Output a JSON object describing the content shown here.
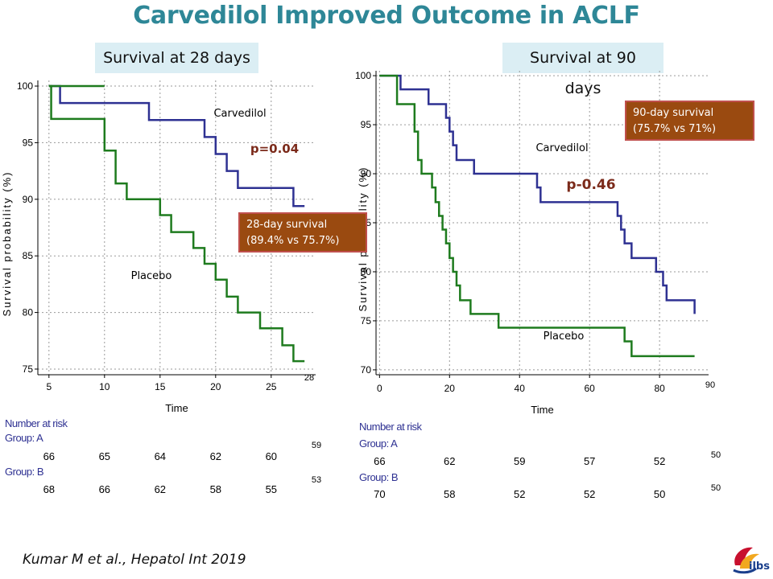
{
  "slide": {
    "title": "Carvedilol Improved Outcome in ACLF",
    "citation": "Kumar M et al., Hepatol Int 2019",
    "logo_text": "ilbs"
  },
  "colors": {
    "carvedilol": "#2e3192",
    "placebo": "#1e7b1e",
    "title": "#2e8797",
    "note_bg": "#9a4a10"
  },
  "chart_data": [
    {
      "type": "line",
      "panel_title": "Survival at 28 days",
      "xlabel": "Time",
      "ylabel": "Survival probability (%)",
      "xlim": [
        4,
        29
      ],
      "ylim": [
        74.5,
        100.5
      ],
      "x_ticks": [
        5,
        10,
        15,
        20,
        25
      ],
      "x_tick_labels": [
        "5",
        "10",
        "15",
        "20",
        "25"
      ],
      "extra_x_label": "28",
      "y_ticks": [
        75,
        80,
        85,
        90,
        95,
        100
      ],
      "grid": true,
      "series": [
        {
          "name": "Carvedilol",
          "color": "#2e3192",
          "steps": [
            [
              5,
              100
            ],
            [
              6,
              98.5
            ],
            [
              14,
              97
            ],
            [
              19,
              95.5
            ],
            [
              20,
              94
            ],
            [
              21,
              92.5
            ],
            [
              22,
              91
            ],
            [
              27,
              89.4
            ],
            [
              28,
              89.4
            ]
          ]
        },
        {
          "name": "Placebo",
          "color": "#1e7b1e",
          "steps": [
            [
              5,
              100
            ],
            [
              5.2,
              97.1
            ],
            [
              10,
              94.3
            ],
            [
              11,
              91.4
            ],
            [
              12,
              90
            ],
            [
              15,
              88.6
            ],
            [
              16,
              87.1
            ],
            [
              18,
              85.7
            ],
            [
              19,
              84.3
            ],
            [
              20,
              82.9
            ],
            [
              21,
              81.4
            ],
            [
              22,
              80
            ],
            [
              24,
              78.6
            ],
            [
              26,
              77.1
            ],
            [
              27,
              75.7
            ],
            [
              28,
              75.7
            ]
          ]
        },
        {
          "name": "",
          "color": "#1e7b1e",
          "steps": [
            [
              5,
              100
            ],
            [
              10,
              100
            ]
          ]
        }
      ],
      "annotations": {
        "p_value": "p=0.04",
        "note": "28-day survival (89.4% vs 75.7%)",
        "note_line1": "28-day survival",
        "note_line2": "(89.4% vs 75.7%)"
      },
      "risk_table": {
        "heading": "Number at risk",
        "groups": [
          {
            "label": "Group: A",
            "values": [
              "66",
              "65",
              "64",
              "62",
              "60"
            ],
            "final": "59"
          },
          {
            "label": "Group: B",
            "values": [
              "68",
              "66",
              "62",
              "58",
              "55"
            ],
            "final": "53"
          }
        ]
      }
    },
    {
      "type": "line",
      "panel_title": "Survival at 90 days",
      "xlabel": "Time",
      "ylabel": "Survival probability (%)",
      "xlim": [
        -1,
        94
      ],
      "ylim": [
        69.5,
        100.5
      ],
      "x_ticks": [
        0,
        20,
        40,
        60,
        80
      ],
      "x_tick_labels": [
        "0",
        "20",
        "40",
        "60",
        "80"
      ],
      "extra_x_label": "90",
      "y_ticks": [
        70,
        75,
        80,
        85,
        90,
        95,
        100
      ],
      "grid": true,
      "series": [
        {
          "name": "Carvedilol",
          "color": "#2e3192",
          "steps": [
            [
              0,
              100
            ],
            [
              6,
              98.6
            ],
            [
              14,
              97.1
            ],
            [
              19,
              95.7
            ],
            [
              20,
              94.3
            ],
            [
              21,
              92.9
            ],
            [
              22,
              91.4
            ],
            [
              27,
              90
            ],
            [
              45,
              88.6
            ],
            [
              46,
              87.1
            ],
            [
              68,
              85.7
            ],
            [
              69,
              84.3
            ],
            [
              70,
              82.9
            ],
            [
              72,
              81.4
            ],
            [
              79,
              80
            ],
            [
              81,
              78.6
            ],
            [
              82,
              77.1
            ],
            [
              90,
              75.7
            ]
          ]
        },
        {
          "name": "Placebo",
          "color": "#1e7b1e",
          "steps": [
            [
              0,
              100
            ],
            [
              5,
              97.1
            ],
            [
              10,
              94.3
            ],
            [
              11,
              91.4
            ],
            [
              12,
              90
            ],
            [
              15,
              88.6
            ],
            [
              16,
              87.1
            ],
            [
              17,
              85.7
            ],
            [
              18,
              84.3
            ],
            [
              19,
              82.9
            ],
            [
              20,
              81.4
            ],
            [
              21,
              80
            ],
            [
              22,
              78.6
            ],
            [
              23,
              77.1
            ],
            [
              26,
              75.7
            ],
            [
              34,
              74.3
            ],
            [
              70,
              72.9
            ],
            [
              72,
              71.4
            ],
            [
              90,
              71.4
            ]
          ]
        }
      ],
      "annotations": {
        "p_value": "p-0.46",
        "note_line1": "90-day survival",
        "note_line2": "(75.7% vs 71%)"
      },
      "risk_table": {
        "heading": "Number at risk",
        "groups": [
          {
            "label": "Group: A",
            "values": [
              "66",
              "62",
              "59",
              "57",
              "52"
            ],
            "final": "50"
          },
          {
            "label": "Group: B",
            "values": [
              "70",
              "58",
              "52",
              "52",
              "50"
            ],
            "final": "50"
          }
        ]
      }
    }
  ]
}
